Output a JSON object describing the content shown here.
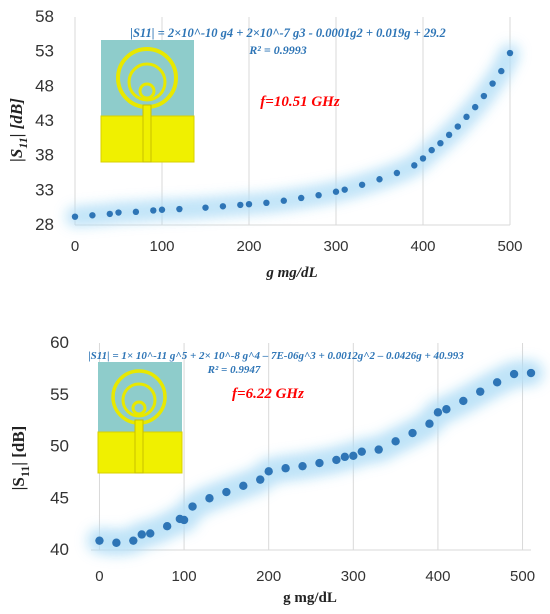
{
  "chart_data": [
    {
      "type": "scatter",
      "title": "",
      "xlabel": "g mg/dL",
      "ylabel": "|S11| [dB]",
      "xlim": [
        0,
        500
      ],
      "ylim": [
        28,
        58
      ],
      "xticks": [
        "0",
        "100",
        "200",
        "300",
        "400",
        "500"
      ],
      "yticks": [
        "28",
        "33",
        "38",
        "43",
        "48",
        "53",
        "58"
      ],
      "grid": "vertical",
      "equation": "|S11| = 2×10^-10 g4 + 2×10^-7 g3 - 0.0001g2 + 0.019g + 29.2",
      "r2": "R² = 0.9993",
      "annotation": "f=10.51 GHz",
      "series": [
        {
          "marker_color": "#2e75b6",
          "trend_color": "#bde3f7",
          "x": [
            0,
            20,
            40,
            50,
            70,
            90,
            100,
            120,
            150,
            170,
            190,
            200,
            220,
            240,
            260,
            280,
            300,
            310,
            330,
            350,
            370,
            390,
            400,
            410,
            420,
            430,
            440,
            450,
            460,
            470,
            480,
            490,
            500
          ],
          "y": [
            29.2,
            29.4,
            29.6,
            29.8,
            29.9,
            30.1,
            30.2,
            30.3,
            30.5,
            30.7,
            30.9,
            31.0,
            31.2,
            31.5,
            31.9,
            32.3,
            32.8,
            33.1,
            33.8,
            34.6,
            35.5,
            36.6,
            37.6,
            38.8,
            39.8,
            41.0,
            42.2,
            43.6,
            45.0,
            46.6,
            48.4,
            50.2,
            52.8
          ]
        }
      ]
    },
    {
      "type": "scatter",
      "title": "",
      "xlabel": "g mg/dL",
      "ylabel": "|S11| [dB]",
      "xlim": [
        -10,
        510
      ],
      "ylim": [
        40,
        60
      ],
      "xticks": [
        "0",
        "100",
        "200",
        "300",
        "400",
        "500"
      ],
      "yticks": [
        "40",
        "45",
        "50",
        "55",
        "60"
      ],
      "grid": "vertical",
      "equation": "|S11| = 1× 10^-11 g^5 + 2× 10^-8 g^4 – 7E-06g^3 + 0.0012g^2 – 0.0426g + 40.993",
      "r2": "R² = 0.9947",
      "annotation": "f=6.22 GHz",
      "series": [
        {
          "marker_color": "#2e75b6",
          "trend_color": "#bde3f7",
          "x": [
            0,
            20,
            40,
            50,
            60,
            80,
            95,
            100,
            110,
            130,
            150,
            170,
            190,
            200,
            220,
            240,
            260,
            280,
            290,
            300,
            310,
            330,
            350,
            370,
            390,
            400,
            410,
            430,
            450,
            470,
            490,
            510
          ],
          "y": [
            40.9,
            40.7,
            40.9,
            41.5,
            41.6,
            42.3,
            43.0,
            42.9,
            44.2,
            45.0,
            45.6,
            46.2,
            46.8,
            47.6,
            47.9,
            48.1,
            48.4,
            48.7,
            49.0,
            49.1,
            49.5,
            49.7,
            50.5,
            51.3,
            52.2,
            53.3,
            53.6,
            54.4,
            55.3,
            56.2,
            57.0,
            57.1
          ]
        }
      ]
    }
  ],
  "inset_colors": {
    "substrate": "#8ecccb",
    "metal": "#f0f000",
    "metal_line": "#d8d000"
  },
  "units": {
    "s_sub": "11"
  }
}
